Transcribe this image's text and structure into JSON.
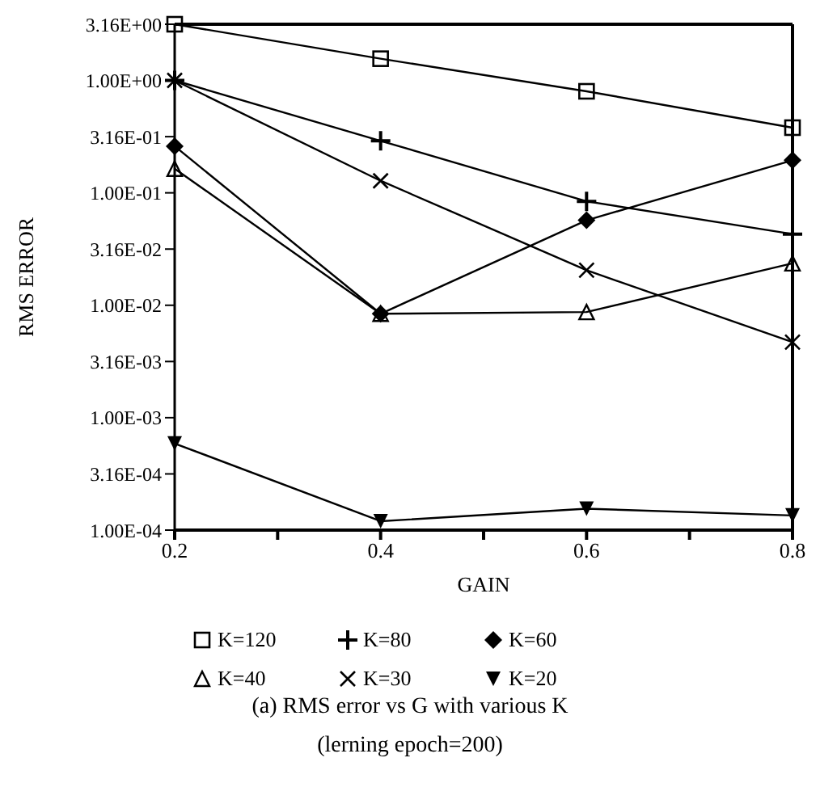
{
  "chart_data": {
    "type": "line",
    "title": "(a) RMS error vs G with various K",
    "subtitle": "(lerning epoch=200)",
    "xlabel": "GAIN",
    "ylabel": "RMS ERROR",
    "x": [
      0.2,
      0.4,
      0.6,
      0.8
    ],
    "series": [
      {
        "name": "K=120",
        "color": "#000000",
        "marker": "square",
        "values": [
          3.16,
          1.56,
          0.8,
          0.38
        ]
      },
      {
        "name": "K=80",
        "color": "#000000",
        "marker": "plus",
        "values": [
          1.0,
          0.29,
          0.084,
          0.043
        ]
      },
      {
        "name": "K=60",
        "color": "#000000",
        "marker": "diamond",
        "values": [
          0.26,
          0.0084,
          0.057,
          0.195
        ]
      },
      {
        "name": "K=40",
        "color": "#000000",
        "marker": "triangle",
        "values": [
          0.164,
          0.0084,
          0.0087,
          0.0236
        ]
      },
      {
        "name": "K=30",
        "color": "#000000",
        "marker": "cross",
        "values": [
          1.0,
          0.128,
          0.0205,
          0.0047
        ]
      },
      {
        "name": "K=20",
        "color": "#000000",
        "marker": "triangle-down",
        "values": [
          0.00059,
          0.00012,
          0.000155,
          0.000135
        ]
      }
    ],
    "log": "y",
    "grid": false,
    "legend": "bottom",
    "line_style": "solid",
    "xlim": [
      0.2,
      0.8
    ],
    "xticks": [
      0.2,
      {
        "value": 0.3,
        "label": null
      },
      0.4,
      {
        "value": 0.5,
        "label": null
      },
      0.6,
      {
        "value": 0.7,
        "label": null
      },
      0.8
    ],
    "ylim": [
      0.0001,
      3.16
    ],
    "yticks": [
      {
        "value": 0.0001,
        "label": "1.00E-04"
      },
      {
        "value": 0.000316,
        "label": "3.16E-04"
      },
      {
        "value": 0.001,
        "label": "1.00E-03"
      },
      {
        "value": 0.00316,
        "label": "3.16E-03"
      },
      {
        "value": 0.01,
        "label": "1.00E-02"
      },
      {
        "value": 0.0316,
        "label": "3.16E-02"
      },
      {
        "value": 0.1,
        "label": "1.00E-01"
      },
      {
        "value": 0.316,
        "label": "3.16E-01"
      },
      {
        "value": 1,
        "label": "1.00E+00"
      },
      {
        "value": 3.16,
        "label": "3.16E+00"
      }
    ]
  }
}
